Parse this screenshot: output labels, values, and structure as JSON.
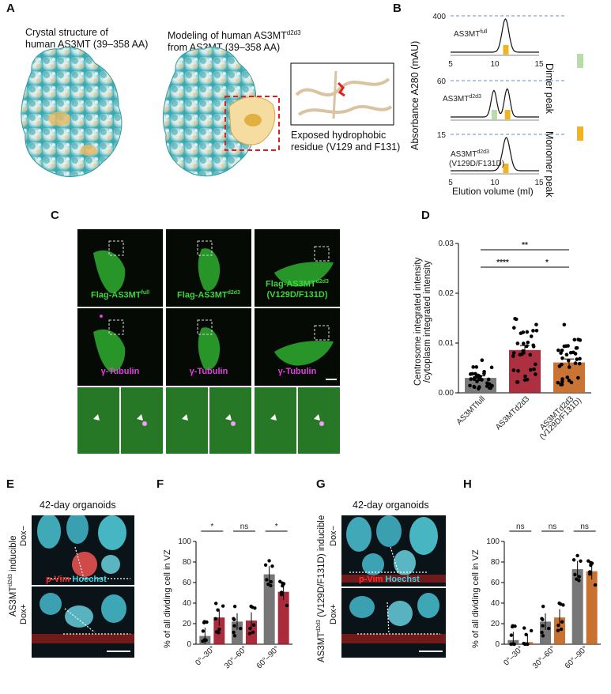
{
  "panels": {
    "A": "A",
    "B": "B",
    "C": "C",
    "D": "D",
    "E": "E",
    "F": "F",
    "G": "G",
    "H": "H"
  },
  "panel_a": {
    "caption_left": [
      "Crystal structure of",
      "human AS3MT (39–358 AA)"
    ],
    "caption_mid": [
      "Modeling of human AS3MTd2d3",
      "from AS3MT (39–358 AA)"
    ],
    "caption_right": [
      "Exposed hydrophobic",
      "residue (V129 and F131)"
    ]
  },
  "panel_b": {
    "ylabel": "Absorbance A280 (mAU)",
    "xlabel": "Elution volume (ml)",
    "traces": [
      {
        "label": "AS3MTfull",
        "ymax": "400"
      },
      {
        "label": "AS3MTd2d3",
        "ymax": "60"
      },
      {
        "label": "AS3MTd2d3 (V129D/F131D)",
        "ymax": "15"
      }
    ],
    "xticks": [
      "5",
      "10",
      "15"
    ],
    "legend": [
      "Dimer peak",
      "Monomer peak"
    ],
    "colors": {
      "dimer": "#b7dca8",
      "monomer": "#f0b323"
    }
  },
  "panel_c": {
    "top_labels": [
      "Flag-AS3MTfull",
      "Flag-AS3MTd2d3",
      "Flag-AS3MTd2d3",
      "(V129D/F131D)"
    ],
    "mid_label": "γ-Tubulin"
  },
  "chart_d": {
    "type": "bar",
    "ylabel_1": "Centrosome integrated intensity",
    "ylabel_2": "/cytoplasm integrated intensity",
    "categories": [
      "AS3MTfull",
      "AS3MTd2d3",
      "AS3MTd2d3 (V129D/F131D)"
    ],
    "values": [
      0.003,
      0.0086,
      0.0061
    ],
    "sem": [
      0.0004,
      0.0009,
      0.0007
    ],
    "yticks": [
      "0.00",
      "0.01",
      "0.02",
      "0.03"
    ],
    "ylim": [
      0,
      0.03
    ],
    "colors": [
      "#6b6b6b",
      "#a3192b",
      "#c3651f"
    ],
    "sig": [
      "**",
      "****",
      "*"
    ]
  },
  "panel_e": {
    "title": "42-day organoids",
    "side_label": "AS3MTd2d3 inducible",
    "dox_minus": "Dox−",
    "dox_plus": "Dox+",
    "stain_red": "p-Vim",
    "stain_cyan": "Hoechst"
  },
  "chart_f": {
    "type": "bar",
    "ylabel": "% of all dividing cell in VZ",
    "categories": [
      "0°–30°",
      "30°–60°",
      "60°–90°"
    ],
    "series": [
      {
        "values": [
          8,
          22,
          68
        ],
        "color": "#6b6b6b"
      },
      {
        "values": [
          26,
          23,
          51
        ],
        "color": "#a3192b"
      }
    ],
    "yticks": [
      "0",
      "20",
      "40",
      "60",
      "80",
      "100"
    ],
    "ylim": [
      0,
      100
    ],
    "sig": [
      "*",
      "ns",
      "*"
    ]
  },
  "panel_g": {
    "title": "42-day organoids",
    "side_label": "AS3MTd2d3 (V129D/F131D) inducible",
    "dox_minus": "Dox−",
    "dox_plus": "Dox+",
    "stain_red": "p-Vim",
    "stain_cyan": "Hoechst"
  },
  "chart_h": {
    "type": "bar",
    "ylabel": "% of all dividing cell in VZ",
    "categories": [
      "0°–30°",
      "30°–60°",
      "60°–90°"
    ],
    "series": [
      {
        "values": [
          4,
          22,
          73
        ],
        "color": "#6b6b6b"
      },
      {
        "values": [
          2,
          26,
          71
        ],
        "color": "#c3651f"
      }
    ],
    "yticks": [
      "0",
      "20",
      "40",
      "60",
      "80",
      "100"
    ],
    "ylim": [
      0,
      100
    ],
    "sig": [
      "ns",
      "ns",
      "ns"
    ]
  }
}
